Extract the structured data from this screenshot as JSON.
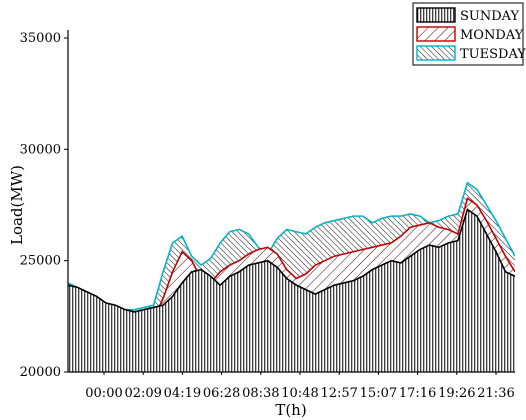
{
  "chart_data": {
    "type": "area",
    "title": "",
    "xlabel": "T(h)",
    "ylabel": "Load(MW)",
    "ylim": [
      20000,
      35000
    ],
    "yticks": [
      20000,
      25000,
      30000,
      35000
    ],
    "xtick_labels": [
      "00:00",
      "02:09",
      "04:19",
      "06:28",
      "08:38",
      "10:48",
      "12:57",
      "15:07",
      "17:16",
      "19:26",
      "21:36"
    ],
    "grid": false,
    "legend_position": "top-right",
    "x": [
      "00:00",
      "00:30",
      "01:00",
      "01:30",
      "02:00",
      "02:30",
      "03:00",
      "03:30",
      "04:00",
      "04:30",
      "05:00",
      "05:30",
      "06:00",
      "06:30",
      "07:00",
      "07:30",
      "08:00",
      "08:30",
      "09:00",
      "09:30",
      "10:00",
      "10:30",
      "11:00",
      "11:30",
      "12:00",
      "12:30",
      "13:00",
      "13:30",
      "14:00",
      "14:30",
      "15:00",
      "15:30",
      "16:00",
      "16:30",
      "17:00",
      "17:30",
      "18:00",
      "18:30",
      "19:00",
      "19:30",
      "20:00",
      "20:30",
      "21:00",
      "21:30",
      "22:00",
      "22:30",
      "23:00",
      "23:30"
    ],
    "series": [
      {
        "name": "SUNDAY",
        "color": "#000000",
        "pattern": "vertical-lines",
        "values": [
          23900,
          23800,
          23600,
          23400,
          23100,
          23000,
          22800,
          22700,
          22800,
          22900,
          23000,
          23400,
          24000,
          24500,
          24600,
          24300,
          23900,
          24300,
          24500,
          24800,
          24900,
          25000,
          24700,
          24200,
          23900,
          23700,
          23500,
          23700,
          23900,
          24000,
          24100,
          24300,
          24600,
          24800,
          25000,
          24900,
          25200,
          25500,
          25700,
          25600,
          25800,
          25900,
          27300,
          27000,
          26200,
          25400,
          24500,
          24300
        ]
      },
      {
        "name": "MONDAY",
        "color": "#c00000",
        "pattern": "diagonal-lines",
        "values": [
          23700,
          23300,
          23000,
          22800,
          22600,
          22400,
          22200,
          22100,
          22200,
          22400,
          23300,
          24500,
          25400,
          25000,
          24200,
          24000,
          24500,
          24800,
          25000,
          25300,
          25500,
          25600,
          25300,
          24600,
          24200,
          24400,
          24800,
          25000,
          25200,
          25300,
          25400,
          25500,
          25600,
          25700,
          25800,
          26100,
          26500,
          26600,
          26700,
          26500,
          26400,
          26200,
          27800,
          27500,
          26800,
          26000,
          25200,
          24500
        ]
      },
      {
        "name": "TUESDAY",
        "color": "#00b4c8",
        "pattern": "dense-diagonal-lines",
        "values": [
          24000,
          23800,
          23500,
          23300,
          23100,
          22900,
          22800,
          22800,
          22900,
          23000,
          24500,
          25800,
          26100,
          25200,
          24800,
          25100,
          25800,
          26300,
          26400,
          26200,
          25600,
          25300,
          26000,
          26400,
          26300,
          26200,
          26500,
          26700,
          26800,
          26900,
          27000,
          27000,
          26700,
          26900,
          27000,
          27000,
          27100,
          27000,
          26700,
          26800,
          27000,
          27100,
          28500,
          28200,
          27500,
          26800,
          26000,
          25200
        ]
      }
    ]
  }
}
